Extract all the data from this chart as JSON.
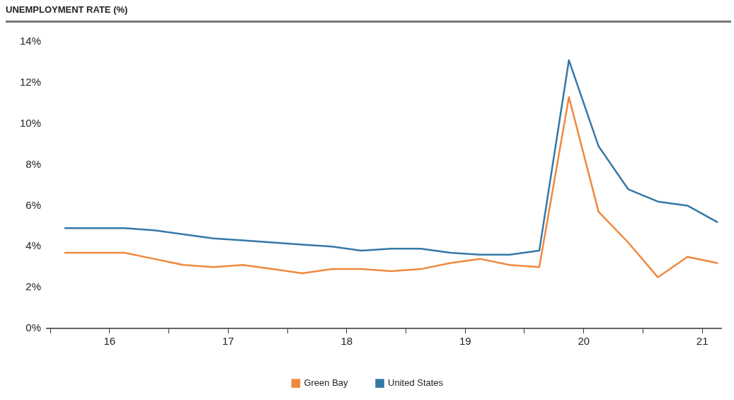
{
  "chart_data": {
    "type": "line",
    "title": "UNEMPLOYMENT RATE (%)",
    "x": [
      16.125,
      16.375,
      16.625,
      16.875,
      17.125,
      17.375,
      17.625,
      17.875,
      18.125,
      18.375,
      18.625,
      18.875,
      19.125,
      19.375,
      19.625,
      19.875,
      20.125,
      20.375,
      20.625,
      20.875,
      21.125,
      21.375,
      21.625
    ],
    "series": [
      {
        "name": "Green Bay",
        "color": "#f0883e",
        "values": [
          3.7,
          3.7,
          3.7,
          3.4,
          3.1,
          3.0,
          3.1,
          2.9,
          2.7,
          2.9,
          2.9,
          2.8,
          2.9,
          3.2,
          3.4,
          3.1,
          3.0,
          11.3,
          5.7,
          4.2,
          2.5,
          3.5,
          3.2
        ]
      },
      {
        "name": "United States",
        "color": "#3578a8",
        "values": [
          4.9,
          4.9,
          4.9,
          4.8,
          4.6,
          4.4,
          4.3,
          4.2,
          4.1,
          4.0,
          3.8,
          3.9,
          3.9,
          3.7,
          3.6,
          3.6,
          3.8,
          13.1,
          8.9,
          6.8,
          6.2,
          6.0,
          5.2
        ]
      }
    ],
    "xlim": [
      15.97,
      21.66
    ],
    "xticks": [
      {
        "value": 16,
        "label": null
      },
      {
        "value": 16.5,
        "label": "16"
      },
      {
        "value": 17,
        "label": null
      },
      {
        "value": 17.5,
        "label": "17"
      },
      {
        "value": 18,
        "label": null
      },
      {
        "value": 18.5,
        "label": "18"
      },
      {
        "value": 19,
        "label": null
      },
      {
        "value": 19.5,
        "label": "19"
      },
      {
        "value": 20,
        "label": null
      },
      {
        "value": 20.5,
        "label": "20"
      },
      {
        "value": 21,
        "label": null
      },
      {
        "value": 21.5,
        "label": "21"
      }
    ],
    "ylim": [
      0,
      14
    ],
    "yticks": [
      {
        "value": 0,
        "label": "0%"
      },
      {
        "value": 2,
        "label": "2%"
      },
      {
        "value": 4,
        "label": "4%"
      },
      {
        "value": 6,
        "label": "6%"
      },
      {
        "value": 8,
        "label": "8%"
      },
      {
        "value": 10,
        "label": "10%"
      },
      {
        "value": 12,
        "label": "12%"
      },
      {
        "value": 14,
        "label": "14%"
      }
    ],
    "grid": false,
    "legend": "bottom",
    "marker": "none",
    "line_style": "solid"
  }
}
